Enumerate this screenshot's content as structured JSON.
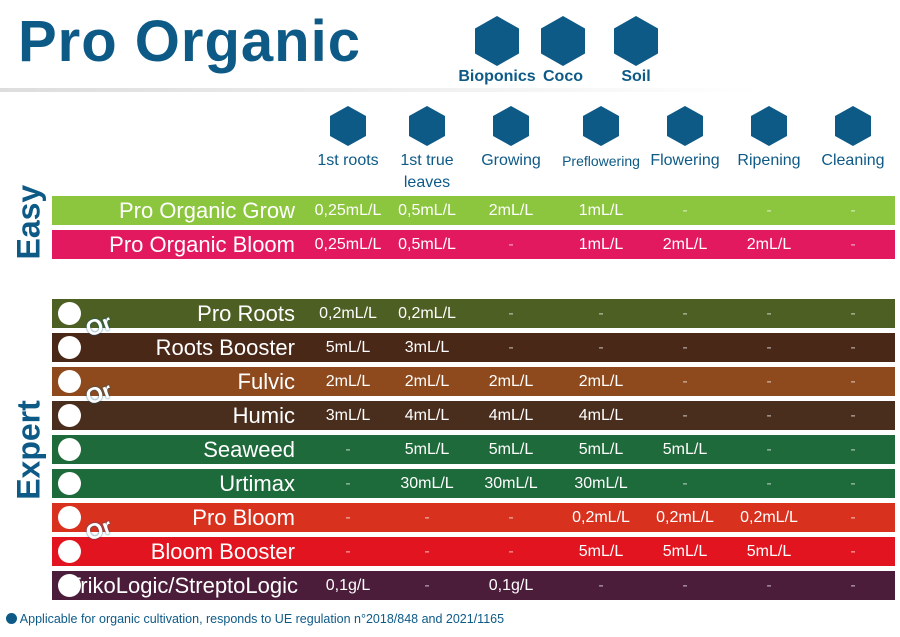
{
  "header": {
    "title": "Pro Organic",
    "media": [
      "Bioponics",
      "Coco",
      "Soil"
    ]
  },
  "stages": [
    "1st roots",
    "1st true leaves",
    "Growing",
    "Preflowering",
    "Flowering",
    "Ripening",
    "Cleaning"
  ],
  "groups": [
    {
      "label": "Easy",
      "rows": [
        {
          "name": "Pro Organic Grow",
          "color": "#8cc63f",
          "cells": [
            "0,25mL/L",
            "0,5mL/L",
            "2mL/L",
            "1mL/L",
            "-",
            "-",
            "-"
          ]
        },
        {
          "name": "Pro Organic Bloom",
          "color": "#e3195f",
          "cells": [
            "0,25mL/L",
            "0,5mL/L",
            "-",
            "1mL/L",
            "2mL/L",
            "2mL/L",
            "-"
          ]
        }
      ]
    },
    {
      "label": "Expert",
      "rows": [
        {
          "name": "Pro Roots",
          "color": "#4d5f22",
          "connector": "Or",
          "cells": [
            "0,2mL/L",
            "0,2mL/L",
            "-",
            "-",
            "-",
            "-",
            "-"
          ]
        },
        {
          "name": "Roots Booster",
          "color": "#4a2818",
          "cells": [
            "5mL/L",
            "3mL/L",
            "-",
            "-",
            "-",
            "-",
            "-"
          ]
        },
        {
          "name": "Fulvic",
          "color": "#8e4a1c",
          "connector": "Or",
          "cells": [
            "2mL/L",
            "2mL/L",
            "2mL/L",
            "2mL/L",
            "-",
            "-",
            "-"
          ]
        },
        {
          "name": "Humic",
          "color": "#4a2e1d",
          "cells": [
            "3mL/L",
            "4mL/L",
            "4mL/L",
            "4mL/L",
            "-",
            "-",
            "-"
          ]
        },
        {
          "name": "Seaweed",
          "color": "#1f6a3a",
          "cells": [
            "-",
            "5mL/L",
            "5mL/L",
            "5mL/L",
            "5mL/L",
            "-",
            "-"
          ]
        },
        {
          "name": "Urtimax",
          "color": "#1d6b3b",
          "cells": [
            "-",
            "30mL/L",
            "30mL/L",
            "30mL/L",
            "-",
            "-",
            "-"
          ]
        },
        {
          "name": "Pro Bloom",
          "color": "#d8321f",
          "connector": "Or",
          "cells": [
            "-",
            "-",
            "-",
            "0,2mL/L",
            "0,2mL/L",
            "0,2mL/L",
            "-"
          ]
        },
        {
          "name": "Bloom Booster",
          "color": "#e1141f",
          "cells": [
            "-",
            "-",
            "-",
            "5mL/L",
            "5mL/L",
            "5mL/L",
            "-"
          ]
        },
        {
          "name": "TrikoLogic/StreptoLogic",
          "color": "#4b1d3b",
          "cells": [
            "0,1g/L",
            "-",
            "0,1g/L",
            "-",
            "-",
            "-",
            "-"
          ]
        }
      ]
    }
  ],
  "footnote": "Applicable for organic cultivation, responds to UE regulation n°2018/848 and 2021/1165"
}
